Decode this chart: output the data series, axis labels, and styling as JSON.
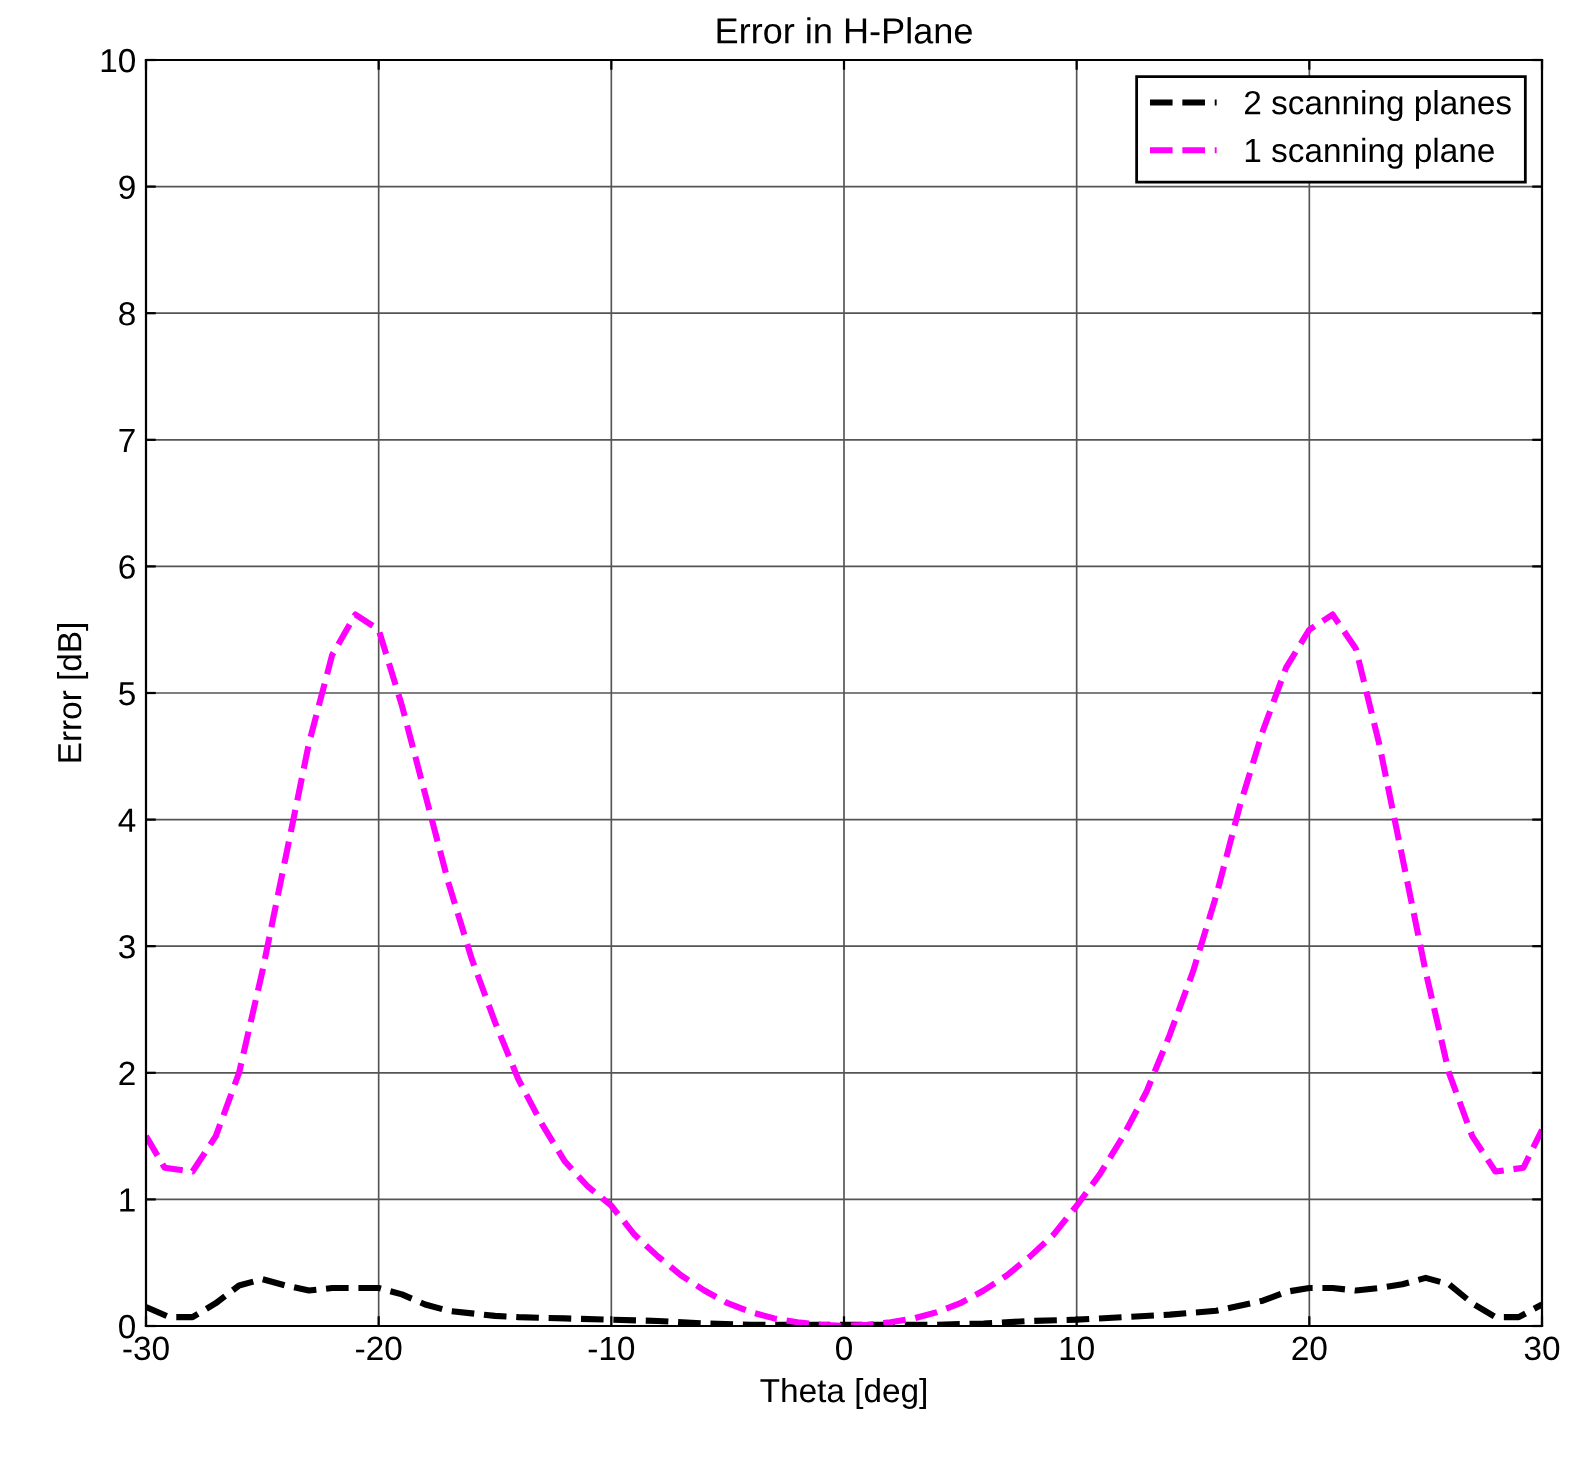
{
  "chart_data": {
    "type": "line",
    "title": "Error in H-Plane",
    "xlabel": "Theta [deg]",
    "ylabel": "Error [dB]",
    "xlim": [
      -30,
      30
    ],
    "xticks": [
      -30,
      -20,
      -10,
      0,
      10,
      20,
      30
    ],
    "ylim": [
      0,
      10
    ],
    "yticks": [
      0,
      1,
      2,
      3,
      4,
      5,
      6,
      7,
      8,
      9,
      10
    ],
    "grid": true,
    "legend": "top right",
    "line_style": "dashed",
    "series": [
      {
        "name": "2 scanning planes",
        "color": "#000000",
        "x": [
          -30,
          -29,
          -28,
          -27,
          -26,
          -25,
          -24,
          -23,
          -22,
          -21,
          -20,
          -19,
          -18,
          -17,
          -16,
          -15,
          -14,
          -12,
          -10,
          -8,
          -6,
          -4,
          0,
          4,
          6,
          8,
          10,
          12,
          14,
          16,
          18,
          19,
          20,
          21,
          22,
          23,
          24,
          25,
          26,
          27,
          28,
          29,
          30
        ],
        "values": [
          0.15,
          0.07,
          0.07,
          0.18,
          0.32,
          0.37,
          0.32,
          0.28,
          0.3,
          0.3,
          0.3,
          0.25,
          0.17,
          0.12,
          0.1,
          0.08,
          0.07,
          0.06,
          0.05,
          0.04,
          0.02,
          0.01,
          0.01,
          0.01,
          0.02,
          0.04,
          0.05,
          0.07,
          0.09,
          0.12,
          0.2,
          0.27,
          0.3,
          0.3,
          0.28,
          0.3,
          0.33,
          0.38,
          0.33,
          0.18,
          0.07,
          0.07,
          0.17
        ]
      },
      {
        "name": "1 scanning plane",
        "color": "#ff00ff",
        "x": [
          -30,
          -29.2,
          -28,
          -27,
          -26,
          -25,
          -24,
          -23,
          -22,
          -21,
          -20,
          -19,
          -18,
          -17,
          -16,
          -15,
          -14,
          -13,
          -12,
          -11,
          -10,
          -9,
          -8,
          -7,
          -6,
          -5,
          -4,
          -3,
          -2,
          -1,
          0,
          1,
          2,
          3,
          4,
          5,
          6,
          7,
          8,
          9,
          10,
          11,
          12,
          13,
          14,
          15,
          16,
          17,
          18,
          19,
          20,
          21,
          22,
          23,
          24,
          25,
          26,
          27,
          28,
          29.2,
          30
        ],
        "values": [
          1.5,
          1.25,
          1.22,
          1.5,
          2.0,
          2.8,
          3.7,
          4.6,
          5.3,
          5.62,
          5.5,
          4.9,
          4.2,
          3.5,
          2.9,
          2.4,
          1.95,
          1.6,
          1.3,
          1.1,
          0.95,
          0.72,
          0.55,
          0.4,
          0.28,
          0.18,
          0.11,
          0.06,
          0.03,
          0.01,
          0.0,
          0.01,
          0.03,
          0.06,
          0.11,
          0.18,
          0.28,
          0.4,
          0.55,
          0.72,
          0.95,
          1.2,
          1.5,
          1.85,
          2.3,
          2.8,
          3.4,
          4.1,
          4.7,
          5.2,
          5.5,
          5.62,
          5.35,
          4.6,
          3.7,
          2.8,
          2.0,
          1.5,
          1.22,
          1.25,
          1.55
        ]
      }
    ]
  }
}
